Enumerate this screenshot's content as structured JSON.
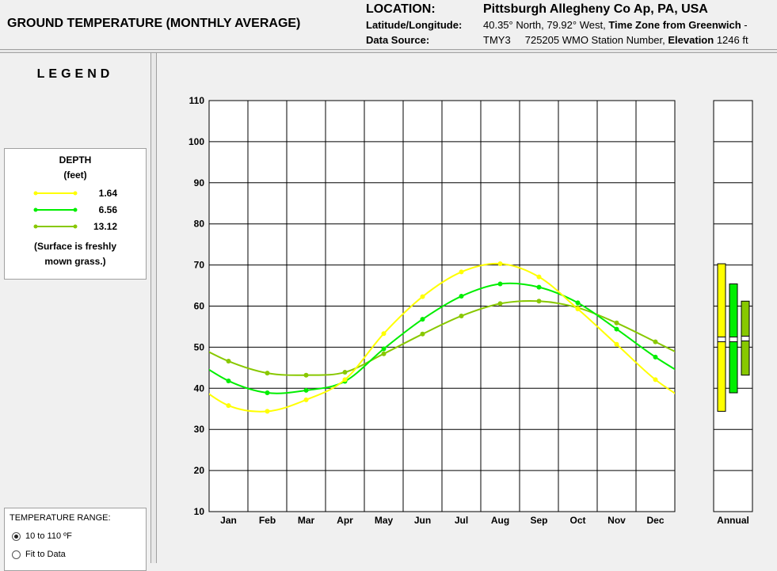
{
  "header": {
    "title": "GROUND TEMPERATURE (MONTHLY AVERAGE)",
    "location_label": "LOCATION:",
    "location_value": "Pittsburgh Allegheny Co Ap, PA, USA",
    "latlon_label": "Latitude/Longitude:",
    "latlon_value": "40.35° North, 79.92° West,",
    "timezone_label": "Time Zone from Greenwich",
    "timezone_value": "-",
    "source_label": "Data Source:",
    "source_value": "TMY3     725205 WMO Station Number,",
    "elevation_label": "Elevation",
    "elevation_value": "1246 ft"
  },
  "legend": {
    "title": "LEGEND",
    "depth_label": "DEPTH",
    "unit_label": "(feet)",
    "note_line1": "(Surface is freshly",
    "note_line2": "mown grass.)",
    "items": [
      {
        "label": "1.64",
        "color": "#ffff00"
      },
      {
        "label": "6.56",
        "color": "#00ee00"
      },
      {
        "label": "13.12",
        "color": "#88c800"
      }
    ]
  },
  "range": {
    "title": "TEMPERATURE RANGE:",
    "options": [
      {
        "label": "10 to 110 ºF",
        "selected": true
      },
      {
        "label": "Fit to Data",
        "selected": false
      }
    ]
  },
  "chart_data": {
    "type": "line",
    "title": "",
    "xlabel": "",
    "ylabel": "",
    "ylim": [
      10,
      110
    ],
    "yticks": [
      10,
      20,
      30,
      40,
      50,
      60,
      70,
      80,
      90,
      100,
      110
    ],
    "grid": true,
    "categories": [
      "Jan",
      "Feb",
      "Mar",
      "Apr",
      "May",
      "Jun",
      "Jul",
      "Aug",
      "Sep",
      "Oct",
      "Nov",
      "Dec"
    ],
    "annual_label": "Annual",
    "series": [
      {
        "name": "1.64",
        "color": "#ffff00",
        "values": [
          35.8,
          34.4,
          37.2,
          42.1,
          53.3,
          62.3,
          68.3,
          70.3,
          67.1,
          59.3,
          50.7,
          42.1
        ]
      },
      {
        "name": "6.56",
        "color": "#00ee00",
        "values": [
          41.8,
          38.9,
          39.5,
          41.7,
          49.6,
          56.8,
          62.4,
          65.4,
          64.6,
          60.8,
          54.4,
          47.6
        ]
      },
      {
        "name": "13.12",
        "color": "#88c800",
        "values": [
          46.6,
          43.7,
          43.2,
          43.9,
          48.4,
          53.2,
          57.6,
          60.6,
          61.2,
          59.6,
          55.9,
          51.3
        ]
      }
    ],
    "annual": [
      {
        "name": "1.64",
        "min": 34.4,
        "max": 70.3,
        "mean": 51.9
      },
      {
        "name": "6.56",
        "min": 38.9,
        "max": 65.4,
        "mean": 51.9
      },
      {
        "name": "13.12",
        "min": 43.2,
        "max": 61.2,
        "mean": 52.1
      }
    ]
  }
}
